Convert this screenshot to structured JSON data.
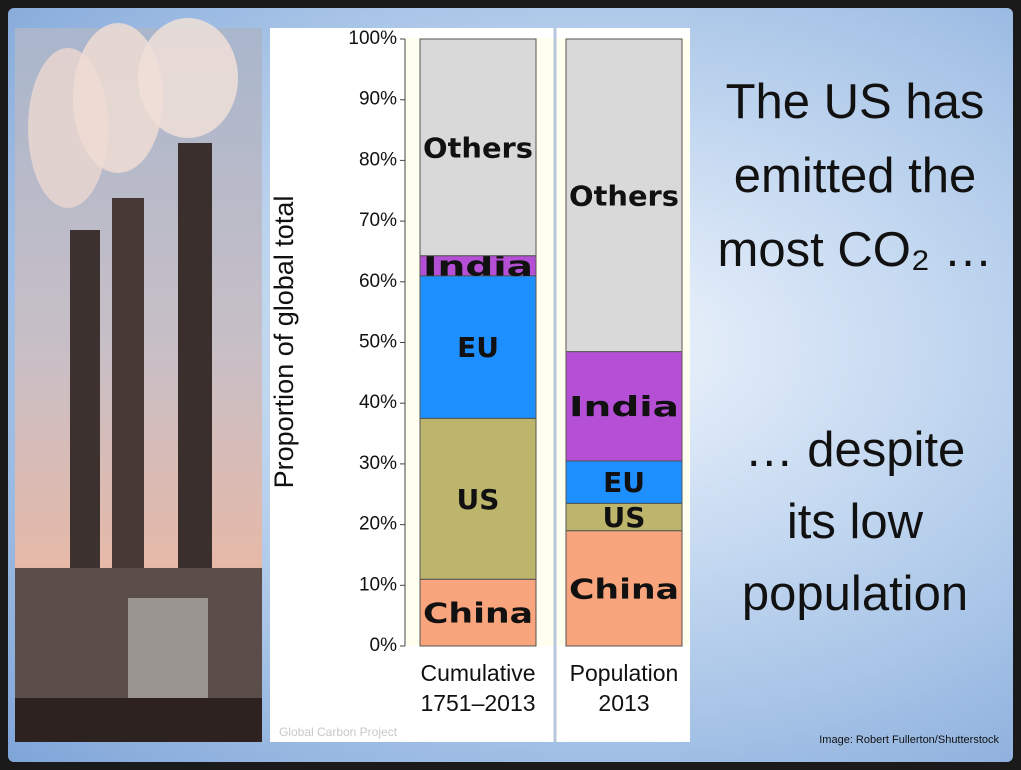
{
  "chart_data": {
    "type": "stacked-bar",
    "ylabel": "Proportion of global total",
    "categories": [
      "Cumulative 1751–2013",
      "Population 2013"
    ],
    "series": [
      {
        "name": "China",
        "color": "#f8a47c",
        "values": [
          11,
          19
        ]
      },
      {
        "name": "US",
        "color": "#bdb56b",
        "values": [
          26.5,
          4.5
        ]
      },
      {
        "name": "EU",
        "color": "#1e8fff",
        "values": [
          23.5,
          7
        ]
      },
      {
        "name": "India",
        "color": "#b550d6",
        "values": [
          3.3,
          18
        ]
      },
      {
        "name": "Others",
        "color": "#d9d9d9",
        "values": [
          35.7,
          51.5
        ]
      }
    ],
    "ylim": [
      0,
      100
    ],
    "yticks": [
      {
        "value": 0,
        "label": "0%"
      },
      {
        "value": 10,
        "label": "10%"
      },
      {
        "value": 20,
        "label": "20%"
      },
      {
        "value": 30,
        "label": "30%"
      },
      {
        "value": 40,
        "label": "40%"
      },
      {
        "value": 50,
        "label": "50%"
      },
      {
        "value": 60,
        "label": "60%"
      },
      {
        "value": 70,
        "label": "70%"
      },
      {
        "value": 80,
        "label": "80%"
      },
      {
        "value": 90,
        "label": "90%"
      },
      {
        "value": 100,
        "label": "100%"
      }
    ],
    "watermark": "Global Carbon Project"
  },
  "headline_top": [
    "The US has",
    "emitted the",
    "most CO₂ …"
  ],
  "headline_bottom": [
    "… despite",
    "its low",
    "population"
  ],
  "credit": "Image: Robert Fullerton/Shutterstock"
}
